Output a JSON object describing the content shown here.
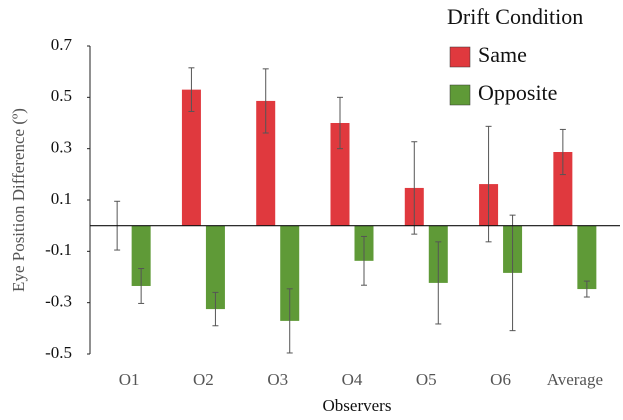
{
  "chart_data": {
    "type": "bar",
    "y_label": "Eye Position Difference (º)",
    "x_label": "Observers",
    "legend_title": "Drift Condition",
    "categories": [
      "O1",
      "O2",
      "O3",
      "O4",
      "O5",
      "O6",
      "Average"
    ],
    "series": [
      {
        "name": "Same",
        "color": "#e0393e",
        "values": [
          0.0,
          0.53,
          0.486,
          0.4,
          0.147,
          0.162,
          0.287
        ],
        "errors": [
          0.095,
          0.085,
          0.125,
          0.1,
          0.18,
          0.225,
          0.088
        ]
      },
      {
        "name": "Opposite",
        "color": "#5f9a37",
        "values": [
          -0.235,
          -0.325,
          -0.371,
          -0.137,
          -0.223,
          -0.184,
          -0.247
        ],
        "errors": [
          0.068,
          0.065,
          0.125,
          0.095,
          0.16,
          0.225,
          0.031
        ]
      }
    ],
    "ylim": [
      -0.5,
      0.7
    ],
    "yticks": [
      -0.5,
      -0.3,
      -0.1,
      0.1,
      0.3,
      0.5,
      0.7
    ],
    "grid": false,
    "legend": "top-right"
  }
}
